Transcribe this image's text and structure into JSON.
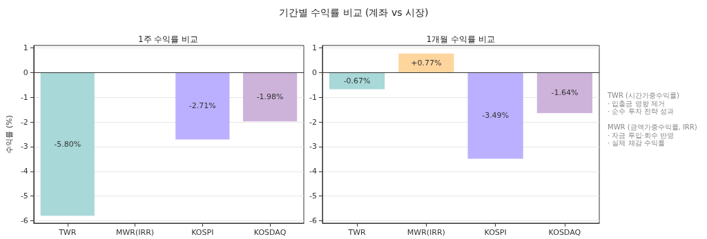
{
  "chart_data": [
    {
      "type": "other",
      "title": "기간별 수익률 비교 (계좌 vs 시장)"
    },
    {
      "type": "bar",
      "title": "1주 수익률 비교",
      "ylabel": "수익률 (%)",
      "categories": [
        "TWR",
        "MWR(IRR)",
        "KOSPI",
        "KOSDAQ"
      ],
      "values": [
        -5.8,
        null,
        -2.71,
        -1.98
      ],
      "colors": [
        "#a8d8d8",
        "#ffd59e",
        "#bbb0ff",
        "#cdb2d9"
      ],
      "value_labels": [
        "-5.80%",
        null,
        "-2.71%",
        "-1.98%"
      ],
      "ylim": [
        -6.1,
        1.1
      ],
      "yticks": [
        -6,
        -5,
        -4,
        -3,
        -2,
        -1,
        0,
        1
      ],
      "grid": "y",
      "ref_lines": [
        {
          "axis": "y",
          "value": 0,
          "color": "#333333"
        }
      ]
    },
    {
      "type": "bar",
      "title": "1개월 수익률 비교",
      "categories": [
        "TWR",
        "MWR(IRR)",
        "KOSPI",
        "KOSDAQ"
      ],
      "values": [
        -0.67,
        0.77,
        -3.49,
        -1.64
      ],
      "colors": [
        "#a8d8d8",
        "#ffd59e",
        "#bbb0ff",
        "#cdb2d9"
      ],
      "value_labels": [
        "-0.67%",
        "+0.77%",
        "-3.49%",
        "-1.64%"
      ],
      "ylim": [
        -6.1,
        1.1
      ],
      "yticks": [
        -6,
        -5,
        -4,
        -3,
        -2,
        -1,
        0,
        1
      ],
      "grid": "y",
      "ref_lines": [
        {
          "axis": "y",
          "value": 0,
          "color": "#333333"
        }
      ]
    },
    {
      "type": "other",
      "annotations": [
        "TWR (시간가중수익률)\n· 입출금 영향 제거\n· 순수 투자 전략 성과\n\nMWR (금액가중수익률, IRR)\n· 자금 투입·회수 반영\n· 실제 체감 수익률"
      ]
    }
  ]
}
